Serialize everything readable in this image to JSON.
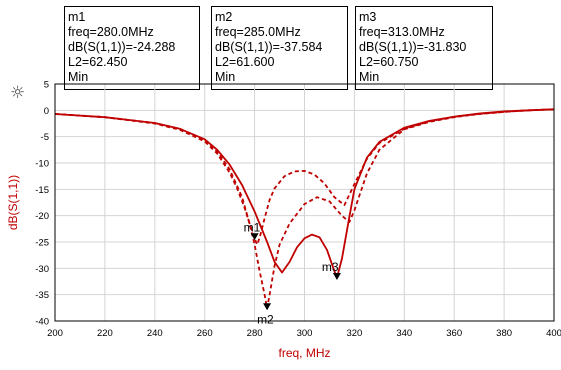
{
  "markers": [
    {
      "name": "m1",
      "freq": "freq=280.0MHz",
      "value": "dB(S(1,1))=-24.288",
      "l2": "L2=62.450",
      "mode": "Min"
    },
    {
      "name": "m2",
      "freq": "freq=285.0MHz",
      "value": "dB(S(1,1))=-37.584",
      "l2": "L2=61.600",
      "mode": "Min"
    },
    {
      "name": "m3",
      "freq": "freq=313.0MHz",
      "value": "dB(S(1,1))=-31.830",
      "l2": "L2=60.750",
      "mode": "Min"
    }
  ],
  "toolbar": {
    "icon": "sun-icon"
  },
  "chart_data": {
    "type": "line",
    "xlabel": "freq, MHz",
    "ylabel": "dB(S(1,1))",
    "xlim": [
      200,
      400
    ],
    "ylim": [
      -40,
      5
    ],
    "x_ticks": [
      200,
      220,
      240,
      260,
      280,
      300,
      320,
      340,
      360,
      380,
      400
    ],
    "y_ticks": [
      5,
      0,
      -5,
      -10,
      -15,
      -20,
      -25,
      -30,
      -35,
      -40
    ],
    "grid": true,
    "line_color": "#c00000",
    "series": [
      {
        "style": "solid",
        "label": "L2=60.750",
        "x": [
          200,
          220,
          240,
          250,
          260,
          265,
          270,
          275,
          280,
          285,
          288,
          291,
          294,
          297,
          300,
          303,
          306,
          309,
          311,
          313,
          315,
          318,
          320,
          325,
          330,
          340,
          350,
          360,
          370,
          380,
          390,
          400
        ],
        "y": [
          -0.7,
          -1.3,
          -2.4,
          -3.5,
          -5.5,
          -7.5,
          -10.3,
          -14.2,
          -19.2,
          -25.0,
          -28.8,
          -30.8,
          -28.8,
          -26.0,
          -24.3,
          -23.6,
          -24.1,
          -26.5,
          -29.2,
          -31.8,
          -28.2,
          -20.2,
          -15.0,
          -9.0,
          -6.0,
          -3.3,
          -2.0,
          -1.2,
          -0.6,
          -0.2,
          0.0,
          0.2
        ]
      },
      {
        "style": "dashed",
        "label": "L2=61.600",
        "x": [
          200,
          220,
          240,
          250,
          260,
          265,
          270,
          275,
          278,
          280,
          282,
          284,
          285,
          286,
          288,
          290,
          294,
          300,
          305,
          310,
          315,
          318,
          320,
          325,
          330,
          340,
          350,
          360,
          370,
          380,
          390,
          400
        ],
        "y": [
          -0.7,
          -1.3,
          -2.4,
          -3.5,
          -5.6,
          -7.8,
          -11.2,
          -16.5,
          -21.5,
          -25.5,
          -30.5,
          -35.0,
          -37.6,
          -35.0,
          -29.5,
          -25.5,
          -21.5,
          -17.8,
          -16.5,
          -17.3,
          -20.0,
          -21.2,
          -19.0,
          -12.0,
          -7.5,
          -3.6,
          -2.2,
          -1.3,
          -0.7,
          -0.3,
          0.0,
          0.2
        ]
      },
      {
        "style": "dashed",
        "label": "L2=62.450",
        "x": [
          200,
          220,
          240,
          250,
          260,
          265,
          270,
          273,
          276,
          278,
          280,
          281,
          282,
          284,
          286,
          288,
          292,
          296,
          300,
          304,
          308,
          312,
          316,
          320,
          325,
          330,
          340,
          350,
          360,
          370,
          380,
          390,
          400
        ],
        "y": [
          -0.7,
          -1.3,
          -2.5,
          -3.7,
          -5.9,
          -8.2,
          -11.8,
          -14.8,
          -18.5,
          -21.5,
          -24.3,
          -25.5,
          -24.2,
          -20.5,
          -17.0,
          -14.8,
          -12.5,
          -11.6,
          -11.5,
          -12.2,
          -13.9,
          -16.5,
          -18.0,
          -14.0,
          -9.2,
          -6.2,
          -3.5,
          -2.1,
          -1.2,
          -0.7,
          -0.3,
          0.0,
          0.2
        ]
      }
    ],
    "annotations": [
      {
        "label": "m1",
        "x": 280,
        "y": -24.288
      },
      {
        "label": "m2",
        "x": 285,
        "y": -37.584
      },
      {
        "label": "m3",
        "x": 313,
        "y": -31.83
      }
    ]
  }
}
